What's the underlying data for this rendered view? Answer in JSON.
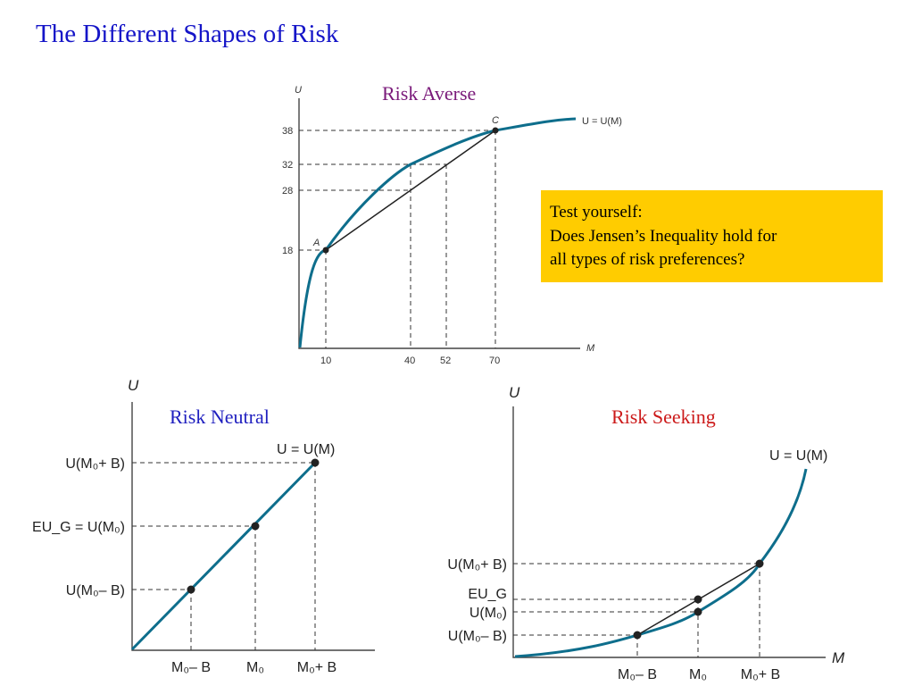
{
  "title": "The Different Shapes of Risk",
  "callout": {
    "line1": "Test yourself:",
    "line2": "Does Jensen’s Inequality hold for",
    "line3": "all types of risk preferences?"
  },
  "averse": {
    "title": "Risk Averse",
    "y_axis_label": "U",
    "x_axis_label": "M",
    "curve_label": "U = U(M)",
    "point_a": "A",
    "point_c": "C",
    "y_ticks": [
      "38",
      "32",
      "28",
      "18"
    ],
    "x_ticks": [
      "10",
      "40",
      "52",
      "70"
    ]
  },
  "neutral": {
    "title": "Risk Neutral",
    "y_axis_label": "U",
    "curve_label": "U = U(M)",
    "y_labels": [
      "U(M₀+ B)",
      "EU_G = U(M₀)",
      "U(M₀– B)"
    ],
    "x_labels": [
      "M₀– B",
      "M₀",
      "M₀+ B"
    ]
  },
  "seeking": {
    "title": "Risk Seeking",
    "y_axis_label": "U",
    "x_axis_label": "M",
    "curve_label": "U = U(M)",
    "y_labels": [
      "U(M₀+ B)",
      "EU_G",
      "U(M₀)",
      "U(M₀– B)"
    ],
    "x_labels": [
      "M₀– B",
      "M₀",
      "M₀+ B"
    ]
  },
  "chart_data": [
    {
      "type": "line",
      "title": "Risk Averse",
      "xlabel": "M",
      "ylabel": "U",
      "series": [
        {
          "name": "U = U(M)",
          "x": [
            10,
            40,
            52,
            70
          ],
          "y": [
            18,
            32,
            34,
            38
          ]
        }
      ],
      "points": [
        {
          "label": "A",
          "x": 10,
          "y": 18
        },
        {
          "label": "C",
          "x": 70,
          "y": 38
        }
      ],
      "chord_values": [
        {
          "x": 40,
          "y": 28
        }
      ]
    }
  ],
  "colors": {
    "curve": "#0e6e8c",
    "title": "#1515c8",
    "averse": "#7a1a7a",
    "neutral": "#1f1fbf",
    "seeking": "#cc1a1a",
    "callout_bg": "#ffcc00"
  }
}
